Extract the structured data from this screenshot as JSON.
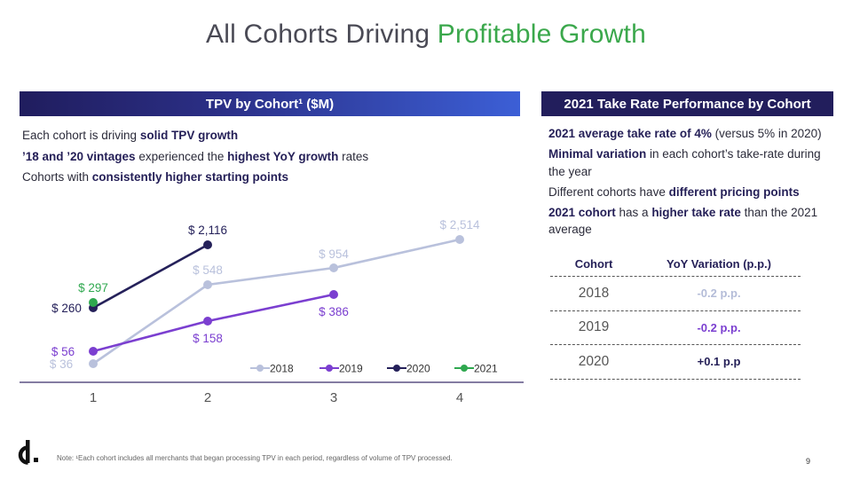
{
  "title": {
    "part1": "All Cohorts Driving ",
    "part2": "Profitable Growth"
  },
  "left_panel": {
    "header": "TPV by Cohort¹ ($M)",
    "bullets": [
      {
        "pre": "Each cohort is driving ",
        "bold": "solid TPV growth",
        "post": ""
      },
      {
        "pre": "",
        "bold": "’18 and ’20 vintages",
        "mid": " experienced the ",
        "bold2": "highest YoY growth",
        "post": " rates"
      },
      {
        "pre": "Cohorts with ",
        "bold": "consistently higher starting points",
        "post": ""
      }
    ]
  },
  "right_panel": {
    "header": "2021 Take Rate Performance by Cohort",
    "bullets": [
      {
        "bold": "2021 average take rate of 4%",
        "rest": " (versus 5% in 2020)"
      },
      {
        "bold": "Minimal variation",
        "rest": " in each cohort’s take-rate during the year"
      },
      {
        "pre": "Different cohorts have ",
        "bold": "different pricing points"
      },
      {
        "bold": "2021 cohort",
        "mid": " has a ",
        "bold2": "higher take rate",
        "rest": " than the 2021 average"
      }
    ],
    "table": {
      "headers": [
        "Cohort",
        "YoY Variation (p.p.)"
      ],
      "rows": [
        {
          "cohort": "2018",
          "variation": "-0.2 p.p.",
          "color": "#b4bcd8"
        },
        {
          "cohort": "2019",
          "variation": "-0.2 p.p.",
          "color": "#7b3fd0"
        },
        {
          "cohort": "2020",
          "variation": "+0.1 p.p",
          "color": "#241f57"
        }
      ]
    }
  },
  "chart_data": {
    "type": "line",
    "title": "",
    "xlabel": "",
    "ylabel": "",
    "categories": [
      "1",
      "2",
      "3",
      "4"
    ],
    "series": [
      {
        "name": "2018",
        "color": "#b9c1dc",
        "values": [
          36,
          548,
          954,
          2514
        ],
        "labels": [
          "$ 36",
          "$ 548",
          "$ 954",
          "$ 2,514"
        ]
      },
      {
        "name": "2019",
        "color": "#7b3fd0",
        "values": [
          56,
          158,
          386,
          null
        ],
        "labels": [
          "$ 56",
          "$ 158",
          "$ 386",
          ""
        ]
      },
      {
        "name": "2020",
        "color": "#25215a",
        "values": [
          260,
          2116,
          null,
          null
        ],
        "labels": [
          "$ 260",
          "$ 2,116",
          "",
          ""
        ]
      },
      {
        "name": "2021",
        "color": "#2fa84f",
        "values": [
          297,
          null,
          null,
          null
        ],
        "labels": [
          "$ 297",
          "",
          "",
          ""
        ]
      }
    ],
    "legend_position": "bottom-right"
  },
  "footer": {
    "note": "Note: ¹Each cohort includes all merchants that began processing TPV in each period, regardless of volume of TPV processed.",
    "page": "9",
    "logo": "d-logo"
  }
}
